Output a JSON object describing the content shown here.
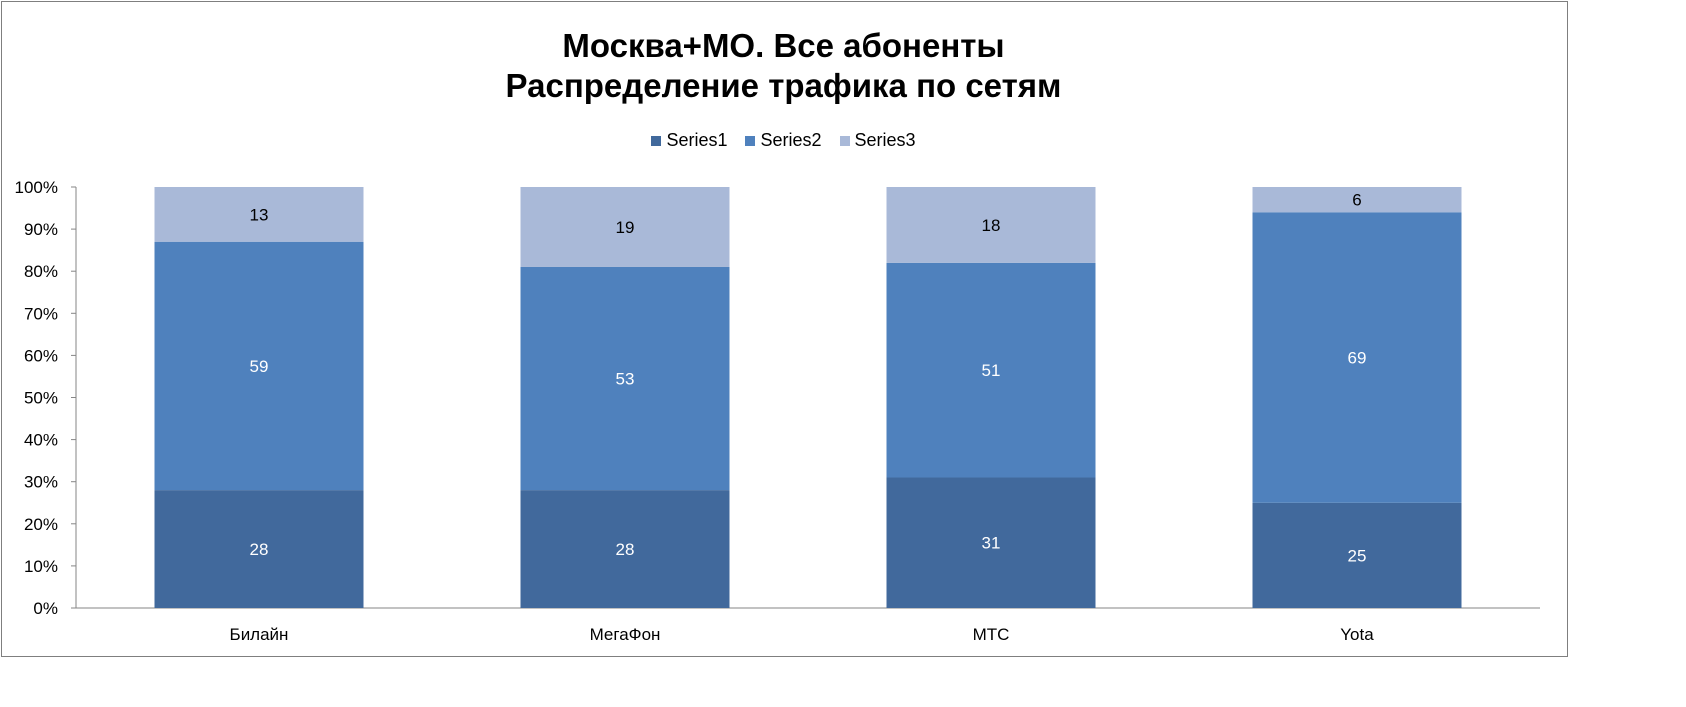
{
  "chart_data": {
    "type": "bar",
    "stacked": "percent",
    "title_line1": "Москва+МО. Все абоненты",
    "title_line2": "Распределение трафика по сетям",
    "categories": [
      "Билайн",
      "МегаФон",
      "МТС",
      "Yota"
    ],
    "series": [
      {
        "name": "Series1",
        "values": [
          28,
          28,
          31,
          25
        ],
        "color": "#41699c",
        "label_color": "#ffffff"
      },
      {
        "name": "Series2",
        "values": [
          59,
          53,
          51,
          69
        ],
        "color": "#4f81bd",
        "label_color": "#ffffff"
      },
      {
        "name": "Series3",
        "values": [
          13,
          19,
          18,
          6
        ],
        "color": "#a9b9d8",
        "label_color": "#000000"
      }
    ],
    "yticks": [
      "0%",
      "10%",
      "20%",
      "30%",
      "40%",
      "50%",
      "60%",
      "70%",
      "80%",
      "90%",
      "100%"
    ],
    "ylim": [
      0,
      100
    ],
    "grid": false,
    "legend_position": "top"
  }
}
